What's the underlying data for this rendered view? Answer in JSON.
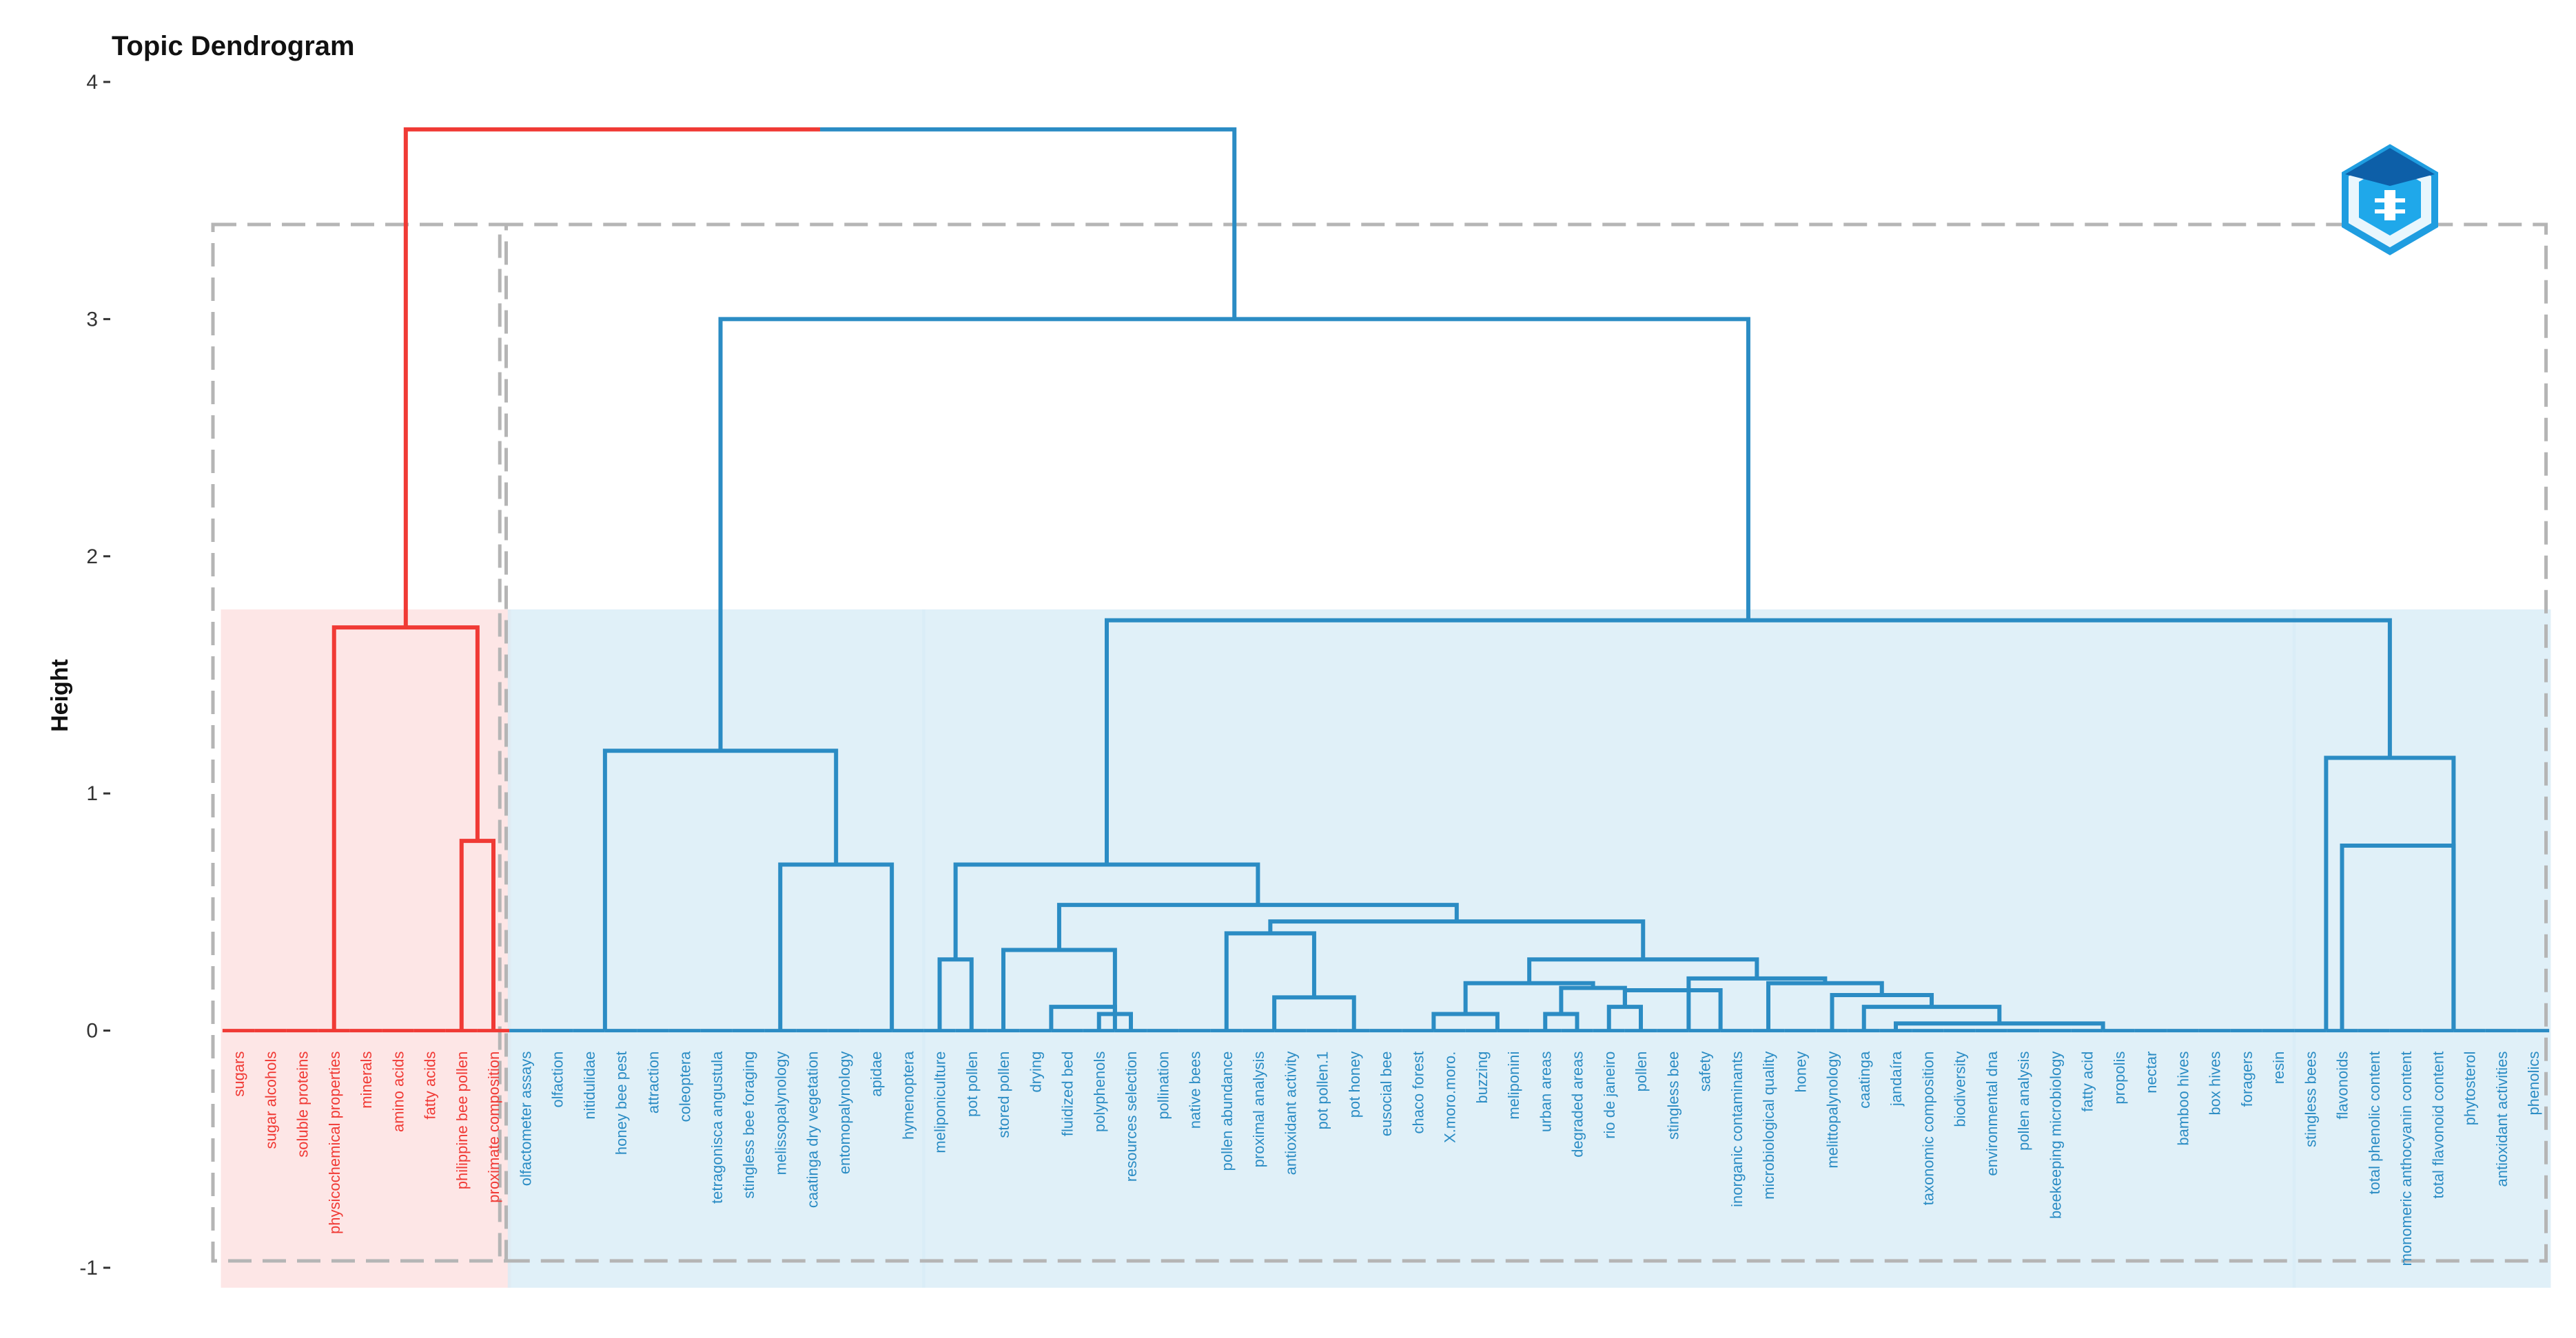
{
  "chart_data": {
    "type": "dendrogram",
    "title": "Topic Dendrogram",
    "ylabel": "Height",
    "xlabel": "",
    "ylim": [
      -1,
      4
    ],
    "y_ticks": [
      4,
      3,
      2,
      1,
      0,
      -1
    ],
    "colors": {
      "red_branch": "#f03a35",
      "blue_branch": "#2b8cc4",
      "red_fill": "#fde0e0",
      "blue_fill": "#d8ecf6",
      "dashed_box": "#b5b5b5"
    },
    "leaves": [
      {
        "label": "sugars",
        "color": "red"
      },
      {
        "label": "sugar alcohols",
        "color": "red"
      },
      {
        "label": "soluble proteins",
        "color": "red"
      },
      {
        "label": "physicochemical properties",
        "color": "red"
      },
      {
        "label": "minerals",
        "color": "red"
      },
      {
        "label": "amino acids",
        "color": "red"
      },
      {
        "label": "fatty acids",
        "color": "red"
      },
      {
        "label": "philippine bee pollen",
        "color": "red"
      },
      {
        "label": "proximate composition",
        "color": "red"
      },
      {
        "label": "olfactometer assays",
        "color": "blue"
      },
      {
        "label": "olfaction",
        "color": "blue"
      },
      {
        "label": "nitidulidae",
        "color": "blue"
      },
      {
        "label": "honey bee pest",
        "color": "blue"
      },
      {
        "label": "attraction",
        "color": "blue"
      },
      {
        "label": "coleoptera",
        "color": "blue"
      },
      {
        "label": "tetragonisca angustula",
        "color": "blue"
      },
      {
        "label": "stingless bee foraging",
        "color": "blue"
      },
      {
        "label": "melissopalynology",
        "color": "blue"
      },
      {
        "label": "caatinga dry vegetation",
        "color": "blue"
      },
      {
        "label": "entomopalynology",
        "color": "blue"
      },
      {
        "label": "apidae",
        "color": "blue"
      },
      {
        "label": "hymenoptera",
        "color": "blue"
      },
      {
        "label": "meliponiculture",
        "color": "blue"
      },
      {
        "label": "pot pollen",
        "color": "blue"
      },
      {
        "label": "stored pollen",
        "color": "blue"
      },
      {
        "label": "drying",
        "color": "blue"
      },
      {
        "label": "fluidized bed",
        "color": "blue"
      },
      {
        "label": "polyphenols",
        "color": "blue"
      },
      {
        "label": "resources selection",
        "color": "blue"
      },
      {
        "label": "pollination",
        "color": "blue"
      },
      {
        "label": "native bees",
        "color": "blue"
      },
      {
        "label": "pollen abundance",
        "color": "blue"
      },
      {
        "label": "proximal analysis",
        "color": "blue"
      },
      {
        "label": "antioxidant activity",
        "color": "blue"
      },
      {
        "label": "pot pollen.1",
        "color": "blue"
      },
      {
        "label": "pot honey",
        "color": "blue"
      },
      {
        "label": "eusocial bee",
        "color": "blue"
      },
      {
        "label": "chaco forest",
        "color": "blue"
      },
      {
        "label": "X.moro.moro.",
        "color": "blue"
      },
      {
        "label": "buzzing",
        "color": "blue"
      },
      {
        "label": "meliponini",
        "color": "blue"
      },
      {
        "label": "urban areas",
        "color": "blue"
      },
      {
        "label": "degraded areas",
        "color": "blue"
      },
      {
        "label": "rio de janeiro",
        "color": "blue"
      },
      {
        "label": "pollen",
        "color": "blue"
      },
      {
        "label": "stingless bee",
        "color": "blue"
      },
      {
        "label": "safety",
        "color": "blue"
      },
      {
        "label": "inorganic contaminants",
        "color": "blue"
      },
      {
        "label": "microbiological quality",
        "color": "blue"
      },
      {
        "label": "honey",
        "color": "blue"
      },
      {
        "label": "melittopalynology",
        "color": "blue"
      },
      {
        "label": "caatinga",
        "color": "blue"
      },
      {
        "label": "jandaíra",
        "color": "blue"
      },
      {
        "label": "taxonomic composition",
        "color": "blue"
      },
      {
        "label": "biodiversity",
        "color": "blue"
      },
      {
        "label": "environmental dna",
        "color": "blue"
      },
      {
        "label": "pollen analysis",
        "color": "blue"
      },
      {
        "label": "beekeeping microbiology",
        "color": "blue"
      },
      {
        "label": "fatty acid",
        "color": "blue"
      },
      {
        "label": "propolis",
        "color": "blue"
      },
      {
        "label": "nectar",
        "color": "blue"
      },
      {
        "label": "bamboo hives",
        "color": "blue"
      },
      {
        "label": "box hives",
        "color": "blue"
      },
      {
        "label": "foragers",
        "color": "blue"
      },
      {
        "label": "resin",
        "color": "blue"
      },
      {
        "label": "stingless bees",
        "color": "blue"
      },
      {
        "label": "flavonoids",
        "color": "blue"
      },
      {
        "label": "total phenolic content",
        "color": "blue"
      },
      {
        "label": "monomeric anthocyanin content",
        "color": "blue"
      },
      {
        "label": "total flavonoid content",
        "color": "blue"
      },
      {
        "label": "phytosterol",
        "color": "blue"
      },
      {
        "label": "antioxidant activities",
        "color": "blue"
      },
      {
        "label": "phenolics",
        "color": "blue"
      }
    ],
    "merges": [
      {
        "left": [
          0,
          6
        ],
        "right": [
          7,
          8
        ],
        "height": 1.7,
        "color": "red"
      },
      {
        "left": [
          7
        ],
        "right": [
          8
        ],
        "height": 0.8,
        "color": "red"
      },
      {
        "left": [
          0,
          8
        ],
        "right": [
          9,
          72
        ],
        "height": 3.8,
        "color": "mixed"
      },
      {
        "left": [
          9,
          21
        ],
        "right": [
          22,
          72
        ],
        "height": 3.0,
        "color": "blue"
      },
      {
        "left": [
          9,
          14
        ],
        "right": [
          15,
          21
        ],
        "height": 1.18,
        "color": "blue"
      },
      {
        "left": [
          15,
          19
        ],
        "right": [
          20,
          21
        ],
        "height": 0.7,
        "color": "blue"
      },
      {
        "left": [
          22,
          64
        ],
        "right": [
          65,
          72
        ],
        "height": 1.73,
        "color": "blue"
      },
      {
        "left": [
          22,
          23
        ],
        "right": [
          24,
          64
        ],
        "height": 0.7,
        "color": "blue"
      },
      {
        "left": [
          22
        ],
        "right": [
          23
        ],
        "height": 0.3,
        "color": "blue"
      },
      {
        "left": [
          24,
          30
        ],
        "right": [
          31,
          64
        ],
        "height": 0.53,
        "color": "blue"
      },
      {
        "left": [
          24
        ],
        "right": [
          25,
          30
        ],
        "height": 0.34,
        "color": "blue"
      },
      {
        "left": [
          25,
          26
        ],
        "right": [
          27,
          28
        ],
        "height": 0.1,
        "color": "blue"
      },
      {
        "left": [
          27
        ],
        "right": [
          28
        ],
        "height": 0.07,
        "color": "blue"
      },
      {
        "left": [
          31,
          36
        ],
        "right": [
          37,
          64
        ],
        "height": 0.46,
        "color": "blue"
      },
      {
        "left": [
          31
        ],
        "right": [
          32,
          36
        ],
        "height": 0.41,
        "color": "blue"
      },
      {
        "left": [
          32,
          33
        ],
        "right": [
          34,
          36
        ],
        "height": 0.14,
        "color": "blue"
      },
      {
        "left": [
          37,
          44
        ],
        "right": [
          45,
          64
        ],
        "height": 0.3,
        "color": "blue"
      },
      {
        "left": [
          37,
          40
        ],
        "right": [
          41,
          44
        ],
        "height": 0.2,
        "color": "blue"
      },
      {
        "left": [
          37,
          38
        ],
        "right": [
          39,
          40
        ],
        "height": 0.07,
        "color": "blue"
      },
      {
        "left": [
          41,
          42
        ],
        "right": [
          43,
          44
        ],
        "height": 0.18,
        "color": "blue"
      },
      {
        "left": [
          41
        ],
        "right": [
          42
        ],
        "height": 0.07,
        "color": "blue"
      },
      {
        "left": [
          43,
          44
        ],
        "right": [
          45,
          48
        ],
        "height": 0.17,
        "color": "blue"
      },
      {
        "left": [
          43
        ],
        "right": [
          44
        ],
        "height": 0.1,
        "color": "blue"
      },
      {
        "left": [
          45,
          46
        ],
        "right": [
          47,
          64
        ],
        "height": 0.22,
        "color": "blue"
      },
      {
        "left": [
          47,
          49
        ],
        "right": [
          50,
          64
        ],
        "height": 0.2,
        "color": "blue"
      },
      {
        "left": [
          50
        ],
        "right": [
          51,
          64
        ],
        "height": 0.15,
        "color": "blue"
      },
      {
        "left": [
          51
        ],
        "right": [
          52,
          64
        ],
        "height": 0.1,
        "color": "blue"
      },
      {
        "left": [
          52
        ],
        "right": [
          53,
          64
        ],
        "height": 0.03,
        "color": "blue"
      },
      {
        "left": [
          65,
          66
        ],
        "right": [
          67,
          72
        ],
        "height": 1.15,
        "color": "blue"
      },
      {
        "left": [
          66
        ],
        "right": [
          67,
          72
        ],
        "height": 0.78,
        "color": "blue"
      }
    ],
    "rect_groups": [
      {
        "from": 0,
        "to": 8,
        "color": "red"
      },
      {
        "from": 9,
        "to": 21,
        "color": "blue"
      },
      {
        "from": 22,
        "to": 64,
        "color": "blue"
      },
      {
        "from": 65,
        "to": 72,
        "color": "blue"
      }
    ],
    "grid": false,
    "legend": "none"
  },
  "icons": {
    "logo": "hexagon-logo-icon"
  }
}
